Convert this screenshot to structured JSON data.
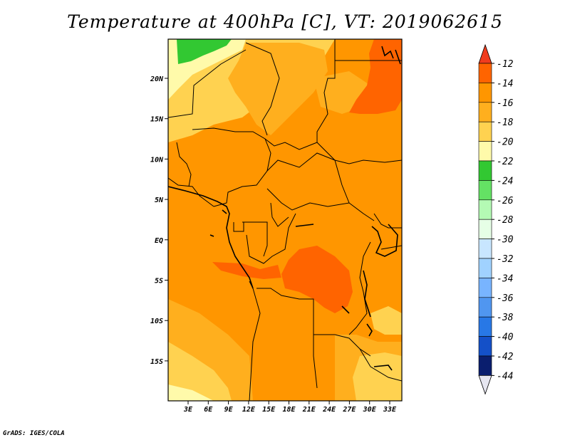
{
  "title": "Temperature at 400hPa [C], VT: 2019062615",
  "credit": "GrADS: IGES/COLA",
  "map": {
    "lat_labels": [
      "20N",
      "15N",
      "10N",
      "5N",
      "EQ",
      "5S",
      "10S",
      "15S"
    ],
    "lon_labels": [
      "3E",
      "6E",
      "9E",
      "12E",
      "15E",
      "18E",
      "21E",
      "24E",
      "27E",
      "30E",
      "33E"
    ]
  },
  "colorbar": {
    "labels": [
      "-12",
      "-14",
      "-16",
      "-18",
      "-20",
      "-22",
      "-24",
      "-26",
      "-28",
      "-30",
      "-32",
      "-34",
      "-36",
      "-38",
      "-40",
      "-42",
      "-44"
    ],
    "top_color": "#f03c1e",
    "bottom_color": "#e6e6f0",
    "colors": [
      "#ff6400",
      "#ff9600",
      "#ffaf1e",
      "#ffd250",
      "#fffaaa",
      "#32c832",
      "#64e164",
      "#b4fab4",
      "#e6ffe6",
      "#c8e6ff",
      "#a0d2ff",
      "#78b4ff",
      "#5096f0",
      "#2878e6",
      "#1450c8",
      "#0a1e6e"
    ]
  },
  "palette": {
    "deep_orange": "#ff6400",
    "orange": "#ff9600",
    "light_orange": "#ffaf1e",
    "pale_orange": "#ffd250",
    "cream": "#fffaaa",
    "green": "#32c832",
    "light_green": "#64e164"
  }
}
